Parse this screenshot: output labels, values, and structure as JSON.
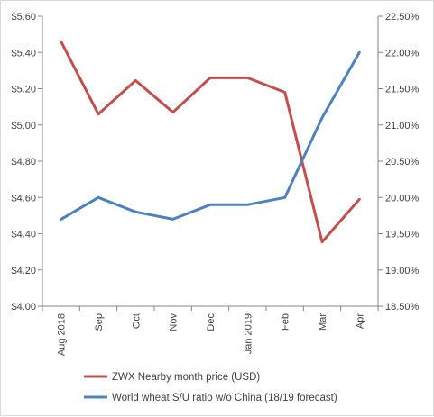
{
  "chart_data": {
    "type": "line",
    "categories": [
      "Aug 2018",
      "Sep",
      "Oct",
      "Nov",
      "Dec",
      "Jan 2019",
      "Feb",
      "Mar",
      "Apr"
    ],
    "y_left": {
      "ylim": [
        4.0,
        5.6
      ],
      "ticks": [
        4.0,
        4.2,
        4.4,
        4.6,
        4.8,
        5.0,
        5.2,
        5.4,
        5.6
      ],
      "tick_labels": [
        "$4.00",
        "$4.20",
        "$4.40",
        "$4.60",
        "$4.80",
        "$5.00",
        "$5.20",
        "$5.40",
        "$5.60"
      ]
    },
    "y_right": {
      "ylim": [
        18.5,
        22.5
      ],
      "ticks": [
        18.5,
        19.0,
        19.5,
        20.0,
        20.5,
        21.0,
        21.5,
        22.0,
        22.5
      ],
      "tick_labels": [
        "18.50%",
        "19.00%",
        "19.50%",
        "20.00%",
        "20.50%",
        "21.00%",
        "21.50%",
        "22.00%",
        "22.50%"
      ]
    },
    "grid": false,
    "legend_position": "bottom",
    "series": [
      {
        "name": "ZWX Nearby month price (USD)",
        "axis": "left",
        "color": "#c0504d",
        "values": [
          5.46,
          5.06,
          5.245,
          5.07,
          5.26,
          5.26,
          5.18,
          4.355,
          4.59
        ]
      },
      {
        "name": "World wheat S/U ratio w/o China (18/19 forecast)",
        "axis": "right",
        "color": "#4f81bd",
        "values": [
          19.7,
          20.0,
          19.8,
          19.7,
          19.9,
          19.9,
          20.0,
          21.1,
          22.0
        ]
      }
    ]
  }
}
